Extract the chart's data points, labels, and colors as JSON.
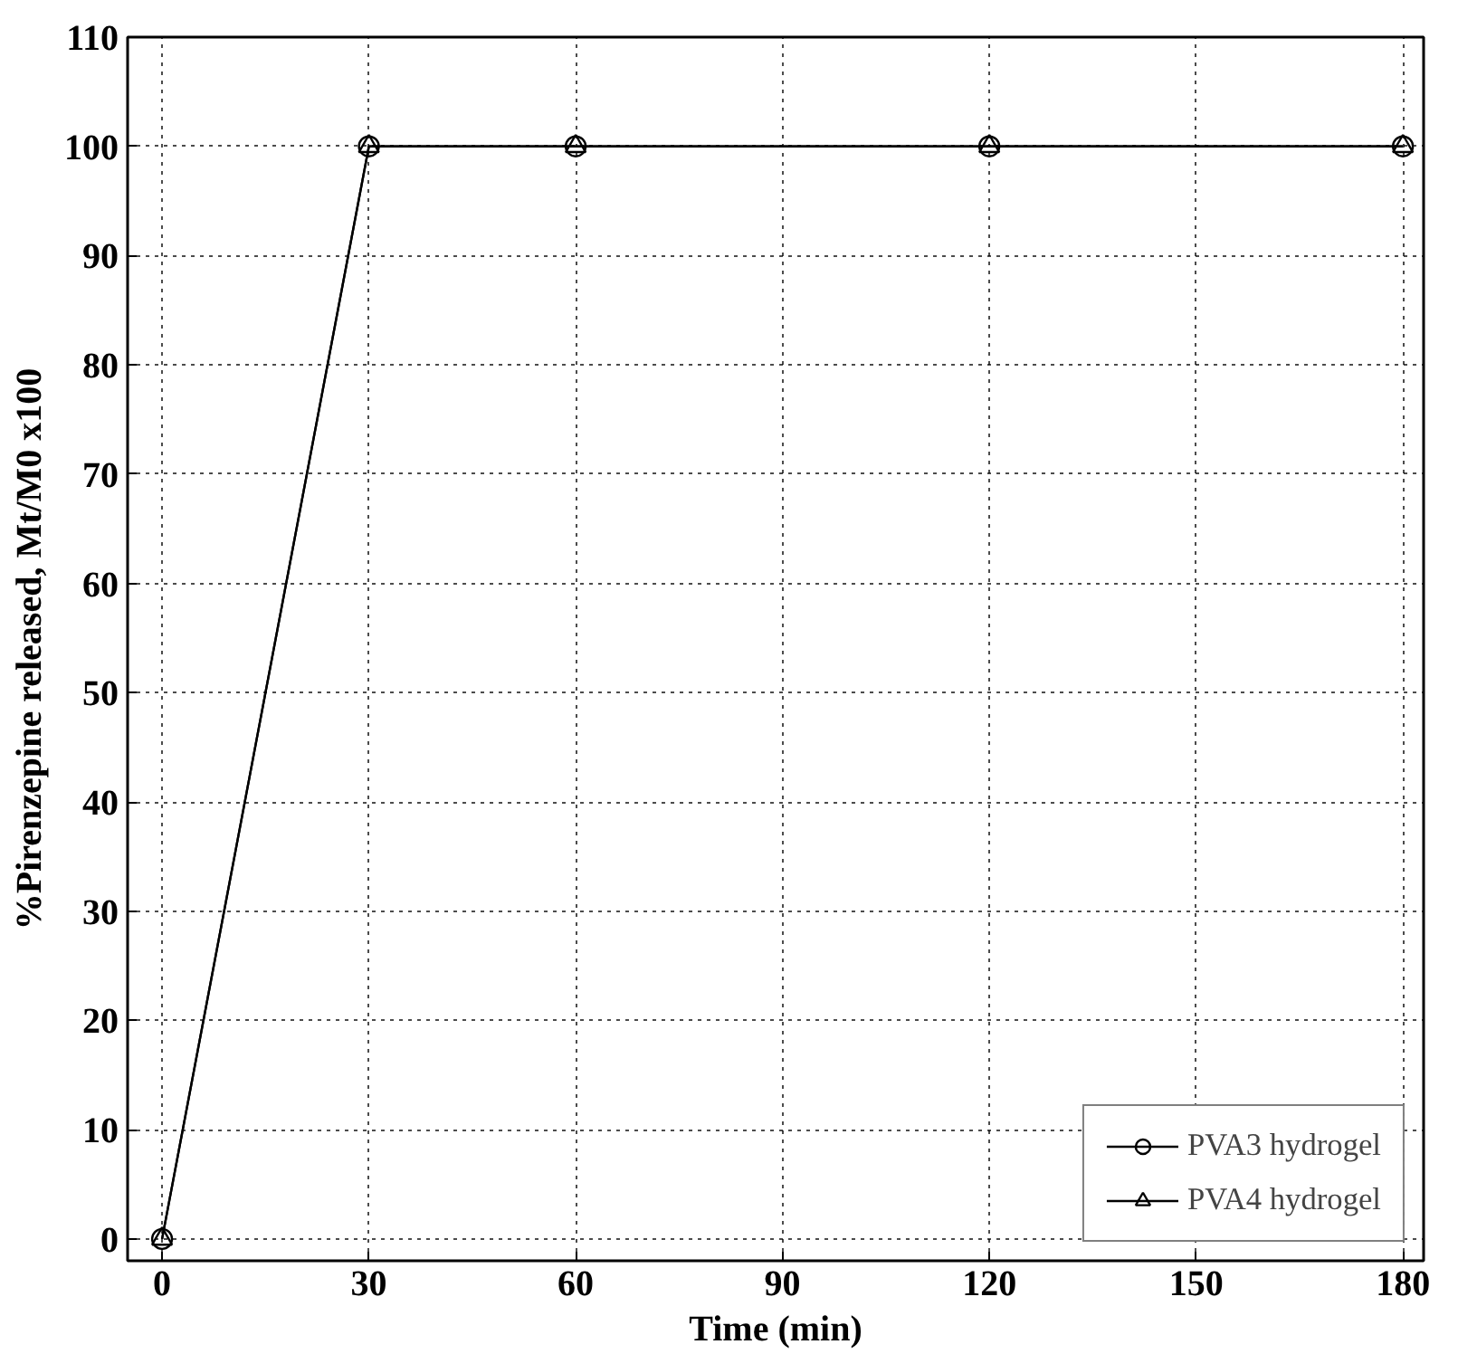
{
  "chart_data": {
    "type": "line",
    "xlabel": "Time (min)",
    "ylabel": "%Pirenzepine released, Mt/M0 x100",
    "x": [
      0,
      30,
      60,
      120,
      180
    ],
    "series": [
      {
        "name": "PVA3 hydrogel",
        "color": "#000000",
        "marker": "circle",
        "values": [
          0,
          100,
          100,
          100,
          100
        ]
      },
      {
        "name": "PVA4 hydrogel",
        "color": "#000000",
        "marker": "triangle",
        "values": [
          0,
          100,
          100,
          100,
          100
        ]
      }
    ],
    "xlim": [
      -5,
      183
    ],
    "ylim": [
      -2,
      110
    ],
    "xticks": [
      0,
      30,
      60,
      90,
      120,
      150,
      180
    ],
    "yticks": [
      0,
      10,
      20,
      30,
      40,
      50,
      60,
      70,
      80,
      90,
      100,
      110
    ],
    "grid": true,
    "legend": "bottom right",
    "line_style": "solid"
  }
}
